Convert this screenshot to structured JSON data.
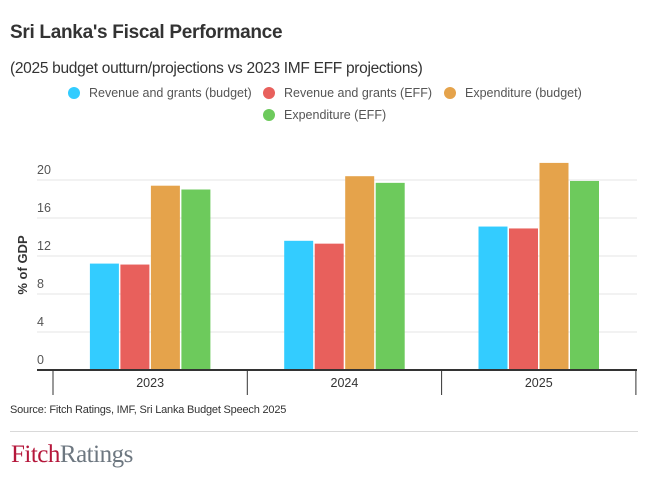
{
  "title": "Sri Lanka's Fiscal Performance",
  "subtitle": "(2025 budget outturn/projections vs 2023 IMF EFF projections)",
  "source": "Source: Fitch Ratings, IMF, Sri Lanka Budget Speech 2025",
  "logo": {
    "part1": "Fitch",
    "part2": "Ratings"
  },
  "chart_data": {
    "type": "bar",
    "title": "Sri Lanka's Fiscal Performance",
    "subtitle": "(2025 budget outturn/projections vs 2023 IMF EFF projections)",
    "xlabel": "",
    "ylabel": "% of GDP",
    "ylim": [
      0,
      22
    ],
    "yticks": [
      0,
      4,
      8,
      12,
      16,
      20
    ],
    "ytick_labels": [
      "0",
      "4",
      "8",
      "12",
      "16",
      "20"
    ],
    "grid": true,
    "legend_position": "top-center",
    "categories": [
      "2023",
      "2024",
      "2025"
    ],
    "series": [
      {
        "name": "Revenue and grants (budget)",
        "color": "#33ccff",
        "values": [
          11.2,
          13.6,
          15.1
        ]
      },
      {
        "name": "Revenue and grants (EFF)",
        "color": "#e8605c",
        "values": [
          11.1,
          13.3,
          14.9
        ]
      },
      {
        "name": "Expenditure (budget)",
        "color": "#e5a34b",
        "values": [
          19.4,
          20.4,
          21.8
        ]
      },
      {
        "name": "Expenditure (EFF)",
        "color": "#6dca5c",
        "values": [
          19.0,
          19.7,
          19.9
        ]
      }
    ]
  }
}
